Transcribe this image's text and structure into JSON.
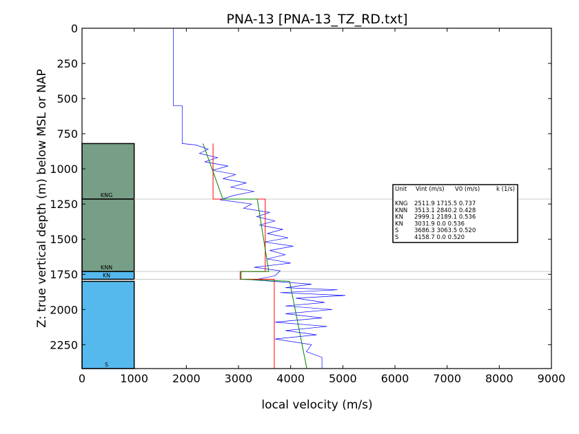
{
  "chart_data": {
    "type": "line",
    "title": "PNA-13 [PNA-13_TZ_RD.txt]",
    "xlabel": "local velocity (m/s)",
    "ylabel": "Z: true vertical depth (m) below MSL or NAP",
    "xlim": [
      0,
      9000
    ],
    "ylim": [
      2420,
      0
    ],
    "y_inverted": true,
    "xticks": [
      0,
      1000,
      2000,
      3000,
      4000,
      5000,
      6000,
      7000,
      8000,
      9000
    ],
    "yticks": [
      0,
      250,
      500,
      750,
      1000,
      1250,
      1500,
      1750,
      2000,
      2250
    ],
    "grid": false,
    "colors": {
      "measured": "#0000ff",
      "interval": "#ff0000",
      "linear_fit": "#008000",
      "unit_kn": "#779e86",
      "unit_s": "#56b9ee",
      "boundary": "#c8c8c8"
    },
    "units": [
      {
        "name": "KNG",
        "top": 820,
        "base": 1215,
        "color": "#779e86"
      },
      {
        "name": "KNN",
        "top": 1215,
        "base": 1730,
        "color": "#779e86"
      },
      {
        "name": "KN",
        "top": 1730,
        "base": 1785,
        "color": "#56b9ee"
      },
      {
        "name": "S",
        "top": 1800,
        "base": 2420,
        "color": "#56b9ee"
      }
    ],
    "boundaries": [
      1215,
      1730,
      1785,
      2420
    ],
    "table": {
      "header": [
        "Unit",
        "Vint (m/s)",
        "V0 (m/s)",
        "k (1/s)"
      ],
      "rows": [
        [
          "KNG",
          "2511.9",
          "1715.5",
          "0.737"
        ],
        [
          "KNN",
          "3513.1",
          "2840.2",
          "0.428"
        ],
        [
          "KN",
          "2999.1",
          "2189.1",
          "0.536"
        ],
        [
          "KN",
          "3031.9",
          "0.0",
          "0.536"
        ],
        [
          "S",
          "3686.3",
          "3063.5",
          "0.520"
        ],
        [
          "S",
          "4158.7",
          "0.0",
          "0.520"
        ]
      ]
    },
    "series": [
      {
        "name": "measured",
        "color": "#0000ff",
        "points": [
          [
            1750,
            0
          ],
          [
            1750,
            550
          ],
          [
            1920,
            550
          ],
          [
            1920,
            820
          ],
          [
            2180,
            830
          ],
          [
            2420,
            860
          ],
          [
            2250,
            890
          ],
          [
            2600,
            920
          ],
          [
            2350,
            950
          ],
          [
            2800,
            980
          ],
          [
            2500,
            1010
          ],
          [
            2950,
            1040
          ],
          [
            2700,
            1070
          ],
          [
            3150,
            1100
          ],
          [
            2850,
            1130
          ],
          [
            3300,
            1160
          ],
          [
            2900,
            1190
          ],
          [
            2650,
            1220
          ],
          [
            3250,
            1250
          ],
          [
            3100,
            1280
          ],
          [
            3600,
            1310
          ],
          [
            3350,
            1340
          ],
          [
            3700,
            1370
          ],
          [
            3400,
            1400
          ],
          [
            3850,
            1430
          ],
          [
            3550,
            1460
          ],
          [
            3950,
            1490
          ],
          [
            3500,
            1520
          ],
          [
            4050,
            1550
          ],
          [
            3600,
            1580
          ],
          [
            3900,
            1610
          ],
          [
            3550,
            1640
          ],
          [
            4000,
            1670
          ],
          [
            3300,
            1700
          ],
          [
            3800,
            1725
          ],
          [
            3700,
            1760
          ],
          [
            3300,
            1790
          ],
          [
            4400,
            1820
          ],
          [
            3900,
            1845
          ],
          [
            4900,
            1860
          ],
          [
            3800,
            1880
          ],
          [
            5050,
            1900
          ],
          [
            4100,
            1920
          ],
          [
            4650,
            1950
          ],
          [
            3900,
            1975
          ],
          [
            4800,
            2000
          ],
          [
            3900,
            2030
          ],
          [
            4600,
            2060
          ],
          [
            3700,
            2090
          ],
          [
            4700,
            2120
          ],
          [
            3900,
            2150
          ],
          [
            4500,
            2180
          ],
          [
            3700,
            2210
          ],
          [
            4400,
            2250
          ],
          [
            4300,
            2300
          ],
          [
            4600,
            2340
          ],
          [
            4600,
            2420
          ]
        ]
      },
      {
        "name": "interval",
        "color": "#ff0000",
        "points": [
          [
            2511.9,
            820
          ],
          [
            2511.9,
            1215
          ],
          [
            3513.1,
            1215
          ],
          [
            3513.1,
            1730
          ],
          [
            3031.9,
            1730
          ],
          [
            3031.9,
            1785
          ],
          [
            3686.3,
            1785
          ],
          [
            3686.3,
            2420
          ]
        ]
      },
      {
        "name": "linear_fit",
        "color": "#008000",
        "points": [
          [
            2320,
            820
          ],
          [
            2700,
            1215
          ],
          [
            3360,
            1215
          ],
          [
            3580,
            1730
          ],
          [
            3050,
            1730
          ],
          [
            3050,
            1785
          ],
          [
            3980,
            1800
          ],
          [
            4310,
            2420
          ]
        ]
      }
    ]
  }
}
